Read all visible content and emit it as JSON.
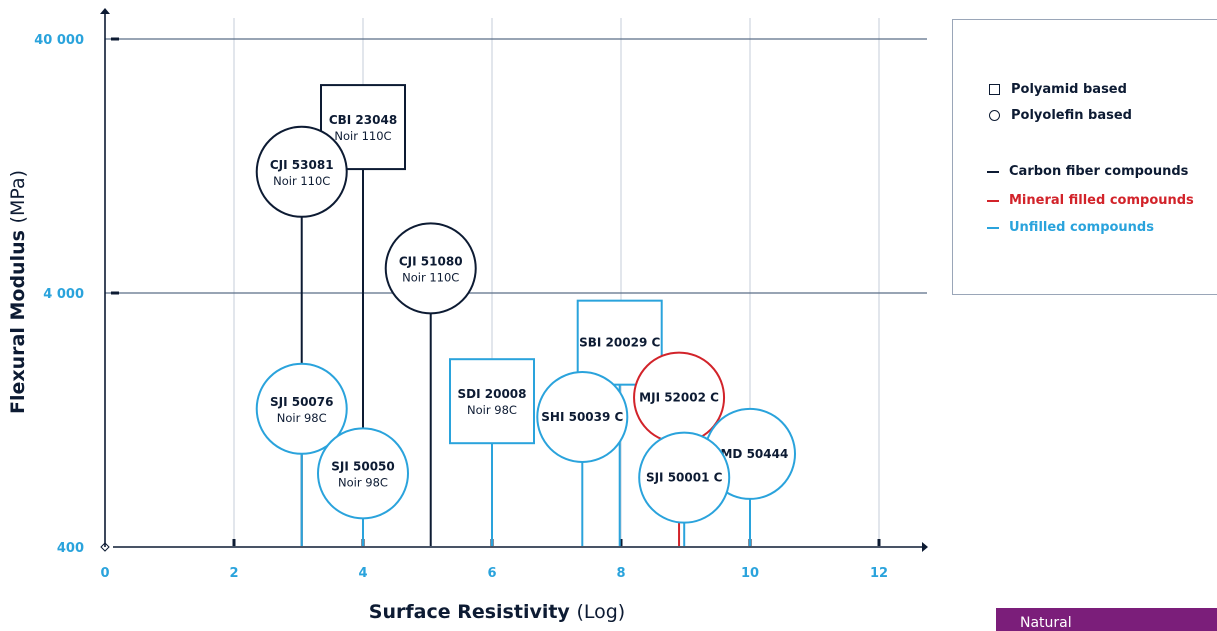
{
  "chart_data": {
    "type": "scatter",
    "xlabel_bold": "Surface Resistivity",
    "xlabel_unit": "(Log)",
    "ylabel_bold": "Flexural Modulus",
    "ylabel_unit": "(MPa)",
    "x_ticks": [
      "0",
      "2",
      "4",
      "6",
      "8",
      "10",
      "12"
    ],
    "y_ticks": [
      "400",
      "4 000",
      "40 000"
    ],
    "xlim": [
      0,
      12.6
    ],
    "ylim": [
      400,
      40000
    ],
    "y_scale": "log",
    "grid": true,
    "points": [
      {
        "name": "CBI 23048",
        "sub": "Noir 110C",
        "x": 4.0,
        "y": 18000,
        "shape": "square",
        "color": "#0d1b33"
      },
      {
        "name": "CJI 53081",
        "sub": "Noir 110C",
        "x": 3.05,
        "y": 12000,
        "shape": "circle",
        "color": "#0d1b33"
      },
      {
        "name": "CJI 51080",
        "sub": "Noir 110C",
        "x": 5.05,
        "y": 5000,
        "shape": "circle",
        "color": "#0d1b33"
      },
      {
        "name": "SBI 20029 C",
        "sub": "",
        "x": 7.98,
        "y": 2550,
        "shape": "square",
        "color": "#2aa3dc"
      },
      {
        "name": "SDI 20008",
        "sub": "Noir 98C",
        "x": 6.0,
        "y": 1500,
        "shape": "square",
        "color": "#2aa3dc"
      },
      {
        "name": "SJI 50076",
        "sub": "Noir 98C",
        "x": 3.05,
        "y": 1400,
        "shape": "circle",
        "color": "#2aa3dc"
      },
      {
        "name": "MJI 52002 C",
        "sub": "",
        "x": 8.9,
        "y": 1550,
        "shape": "circle",
        "color": "#d2232a"
      },
      {
        "name": "SHI 50039 C",
        "sub": "",
        "x": 7.4,
        "y": 1300,
        "shape": "circle",
        "color": "#2aa3dc"
      },
      {
        "name": "PMD 50444",
        "sub": "",
        "x": 10.0,
        "y": 930,
        "shape": "circle",
        "color": "#2aa3dc"
      },
      {
        "name": "SJI 50050",
        "sub": "Noir 98C",
        "x": 4.0,
        "y": 780,
        "shape": "circle",
        "color": "#2aa3dc"
      },
      {
        "name": "SJI 50001 C",
        "sub": "",
        "x": 8.98,
        "y": 750,
        "shape": "circle",
        "color": "#2aa3dc"
      }
    ],
    "legend": {
      "placement": "top-right",
      "shapes": [
        {
          "symbol": "square",
          "label": "Polyamid based"
        },
        {
          "symbol": "circle",
          "label": "Polyolefin based"
        }
      ],
      "series": [
        {
          "label": "Carbon fiber compounds",
          "color": "#0d1b33"
        },
        {
          "label": "Mineral filled compounds",
          "color": "#d2232a"
        },
        {
          "label": "Unfilled compounds",
          "color": "#2aa3dc"
        }
      ]
    }
  },
  "badge": {
    "label": "Natural"
  },
  "colors": {
    "axis": "#0d1b33",
    "grid": "#b8c2cf",
    "ref_line": "#5a6e88",
    "tick_label": "#2aa3dc"
  }
}
